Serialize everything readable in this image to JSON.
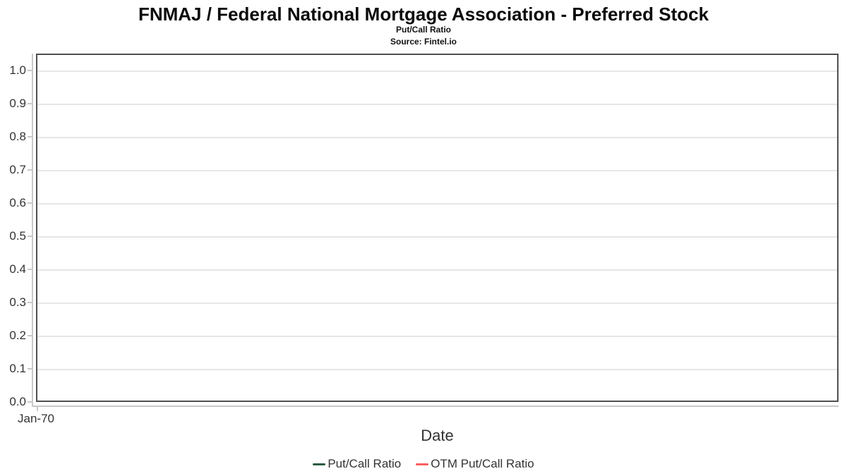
{
  "header": {
    "title": "FNMAJ / Federal National Mortgage Association - Preferred Stock",
    "subtitle": "Put/Call Ratio",
    "source": "Source: Fintel.io"
  },
  "colors": {
    "plot_border": "#4f4f4f",
    "gridline": "#e6e6e6",
    "axis_line": "#c9c9c9",
    "axis_text": "#333333",
    "series_putcall": "#2e5c41",
    "series_otm_putcall": "#fa5e5e"
  },
  "chart_data": {
    "type": "line",
    "title": "FNMAJ / Federal National Mortgage Association - Preferred Stock",
    "subtitle": "Put/Call Ratio",
    "source": "Source: Fintel.io",
    "xlabel": "Date",
    "ylabel": "",
    "x": [
      "Jan-70"
    ],
    "xtick_labels": [
      "Jan-70"
    ],
    "yticks": [
      0.0,
      0.1,
      0.2,
      0.3,
      0.4,
      0.5,
      0.6,
      0.7,
      0.8,
      0.9,
      1.0
    ],
    "ytick_labels": [
      "0.0",
      "0.1",
      "0.2",
      "0.3",
      "0.4",
      "0.5",
      "0.6",
      "0.7",
      "0.8",
      "0.9",
      "1.0"
    ],
    "ylim": [
      0,
      1.05
    ],
    "grid": true,
    "legend_position": "bottom",
    "series": [
      {
        "name": "Put/Call Ratio",
        "color": "#2e5c41",
        "values": []
      },
      {
        "name": "OTM Put/Call Ratio",
        "color": "#fa5e5e",
        "values": []
      }
    ]
  }
}
